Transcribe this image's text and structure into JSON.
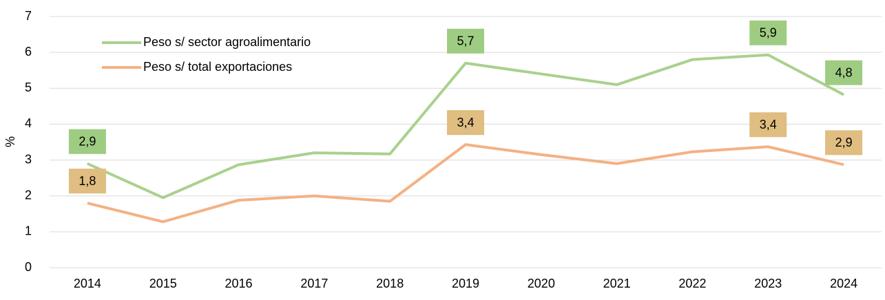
{
  "chart_data": {
    "type": "line",
    "y_label": "%",
    "categories": [
      "2014",
      "2015",
      "2016",
      "2017",
      "2018",
      "2019",
      "2020",
      "2021",
      "2022",
      "2023",
      "2024"
    ],
    "series": [
      {
        "name": "Peso s/ sector agroalimentario",
        "color": "#a9d18e",
        "label_color": "#9fcc83",
        "values": [
          2.9,
          1.95,
          2.87,
          3.2,
          3.17,
          5.7,
          5.4,
          5.1,
          5.8,
          5.93,
          4.82
        ],
        "value_labels": [
          "2,9",
          null,
          null,
          null,
          null,
          "5,7",
          null,
          null,
          null,
          "5,9",
          "4,8"
        ]
      },
      {
        "name": "Peso s/ total exportaciones",
        "color": "#f4b183",
        "label_color": "#e0bd80",
        "values": [
          1.8,
          1.28,
          1.88,
          2.0,
          1.85,
          3.43,
          3.15,
          2.9,
          3.23,
          3.37,
          2.87
        ],
        "value_labels": [
          "1,8",
          null,
          null,
          null,
          null,
          "3,4",
          null,
          null,
          null,
          "3,4",
          "2,9"
        ]
      }
    ],
    "ylim": [
      0,
      7
    ],
    "yticks": [
      0,
      1,
      2,
      3,
      4,
      5,
      6,
      7
    ],
    "grid": true,
    "legend": "upper left"
  }
}
